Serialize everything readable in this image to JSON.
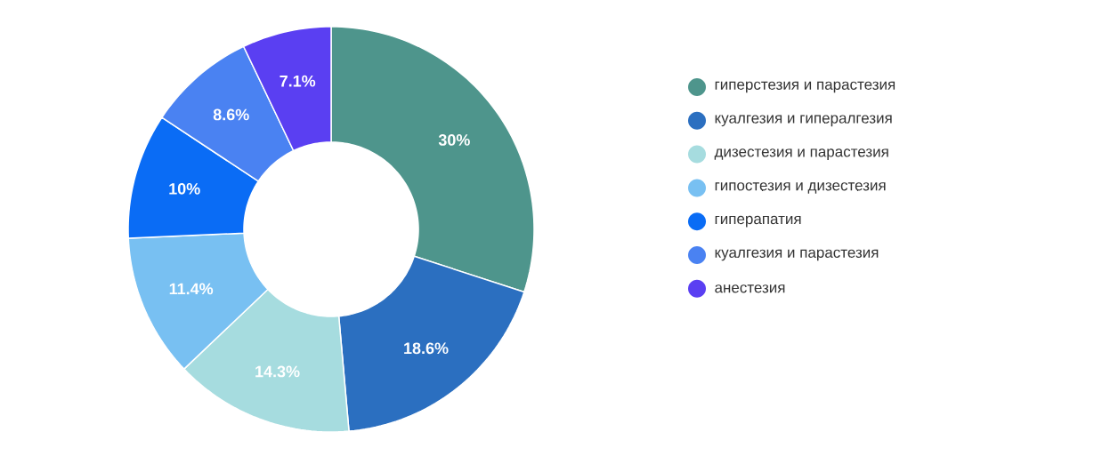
{
  "chart_data": {
    "type": "donut",
    "categories": [
      "гиперстезия и парастезия",
      "куалгезия и гипералгезия",
      "дизестезия и парастезия",
      "гипостезия и дизестезия",
      "гиперапатия",
      "куалгезия и парастезия",
      "анестезия"
    ],
    "values": [
      30,
      18.6,
      14.3,
      11.4,
      10,
      8.6,
      7.1
    ],
    "value_labels": [
      "30%",
      "18.6%",
      "14.3%",
      "11.4%",
      "10%",
      "8.6%",
      "7.1%"
    ],
    "colors": [
      "#4e958c",
      "#2b6fc0",
      "#a6dcdf",
      "#78c0f2",
      "#0a6cf5",
      "#4a82f2",
      "#5a3ff2"
    ],
    "legend": "right"
  }
}
